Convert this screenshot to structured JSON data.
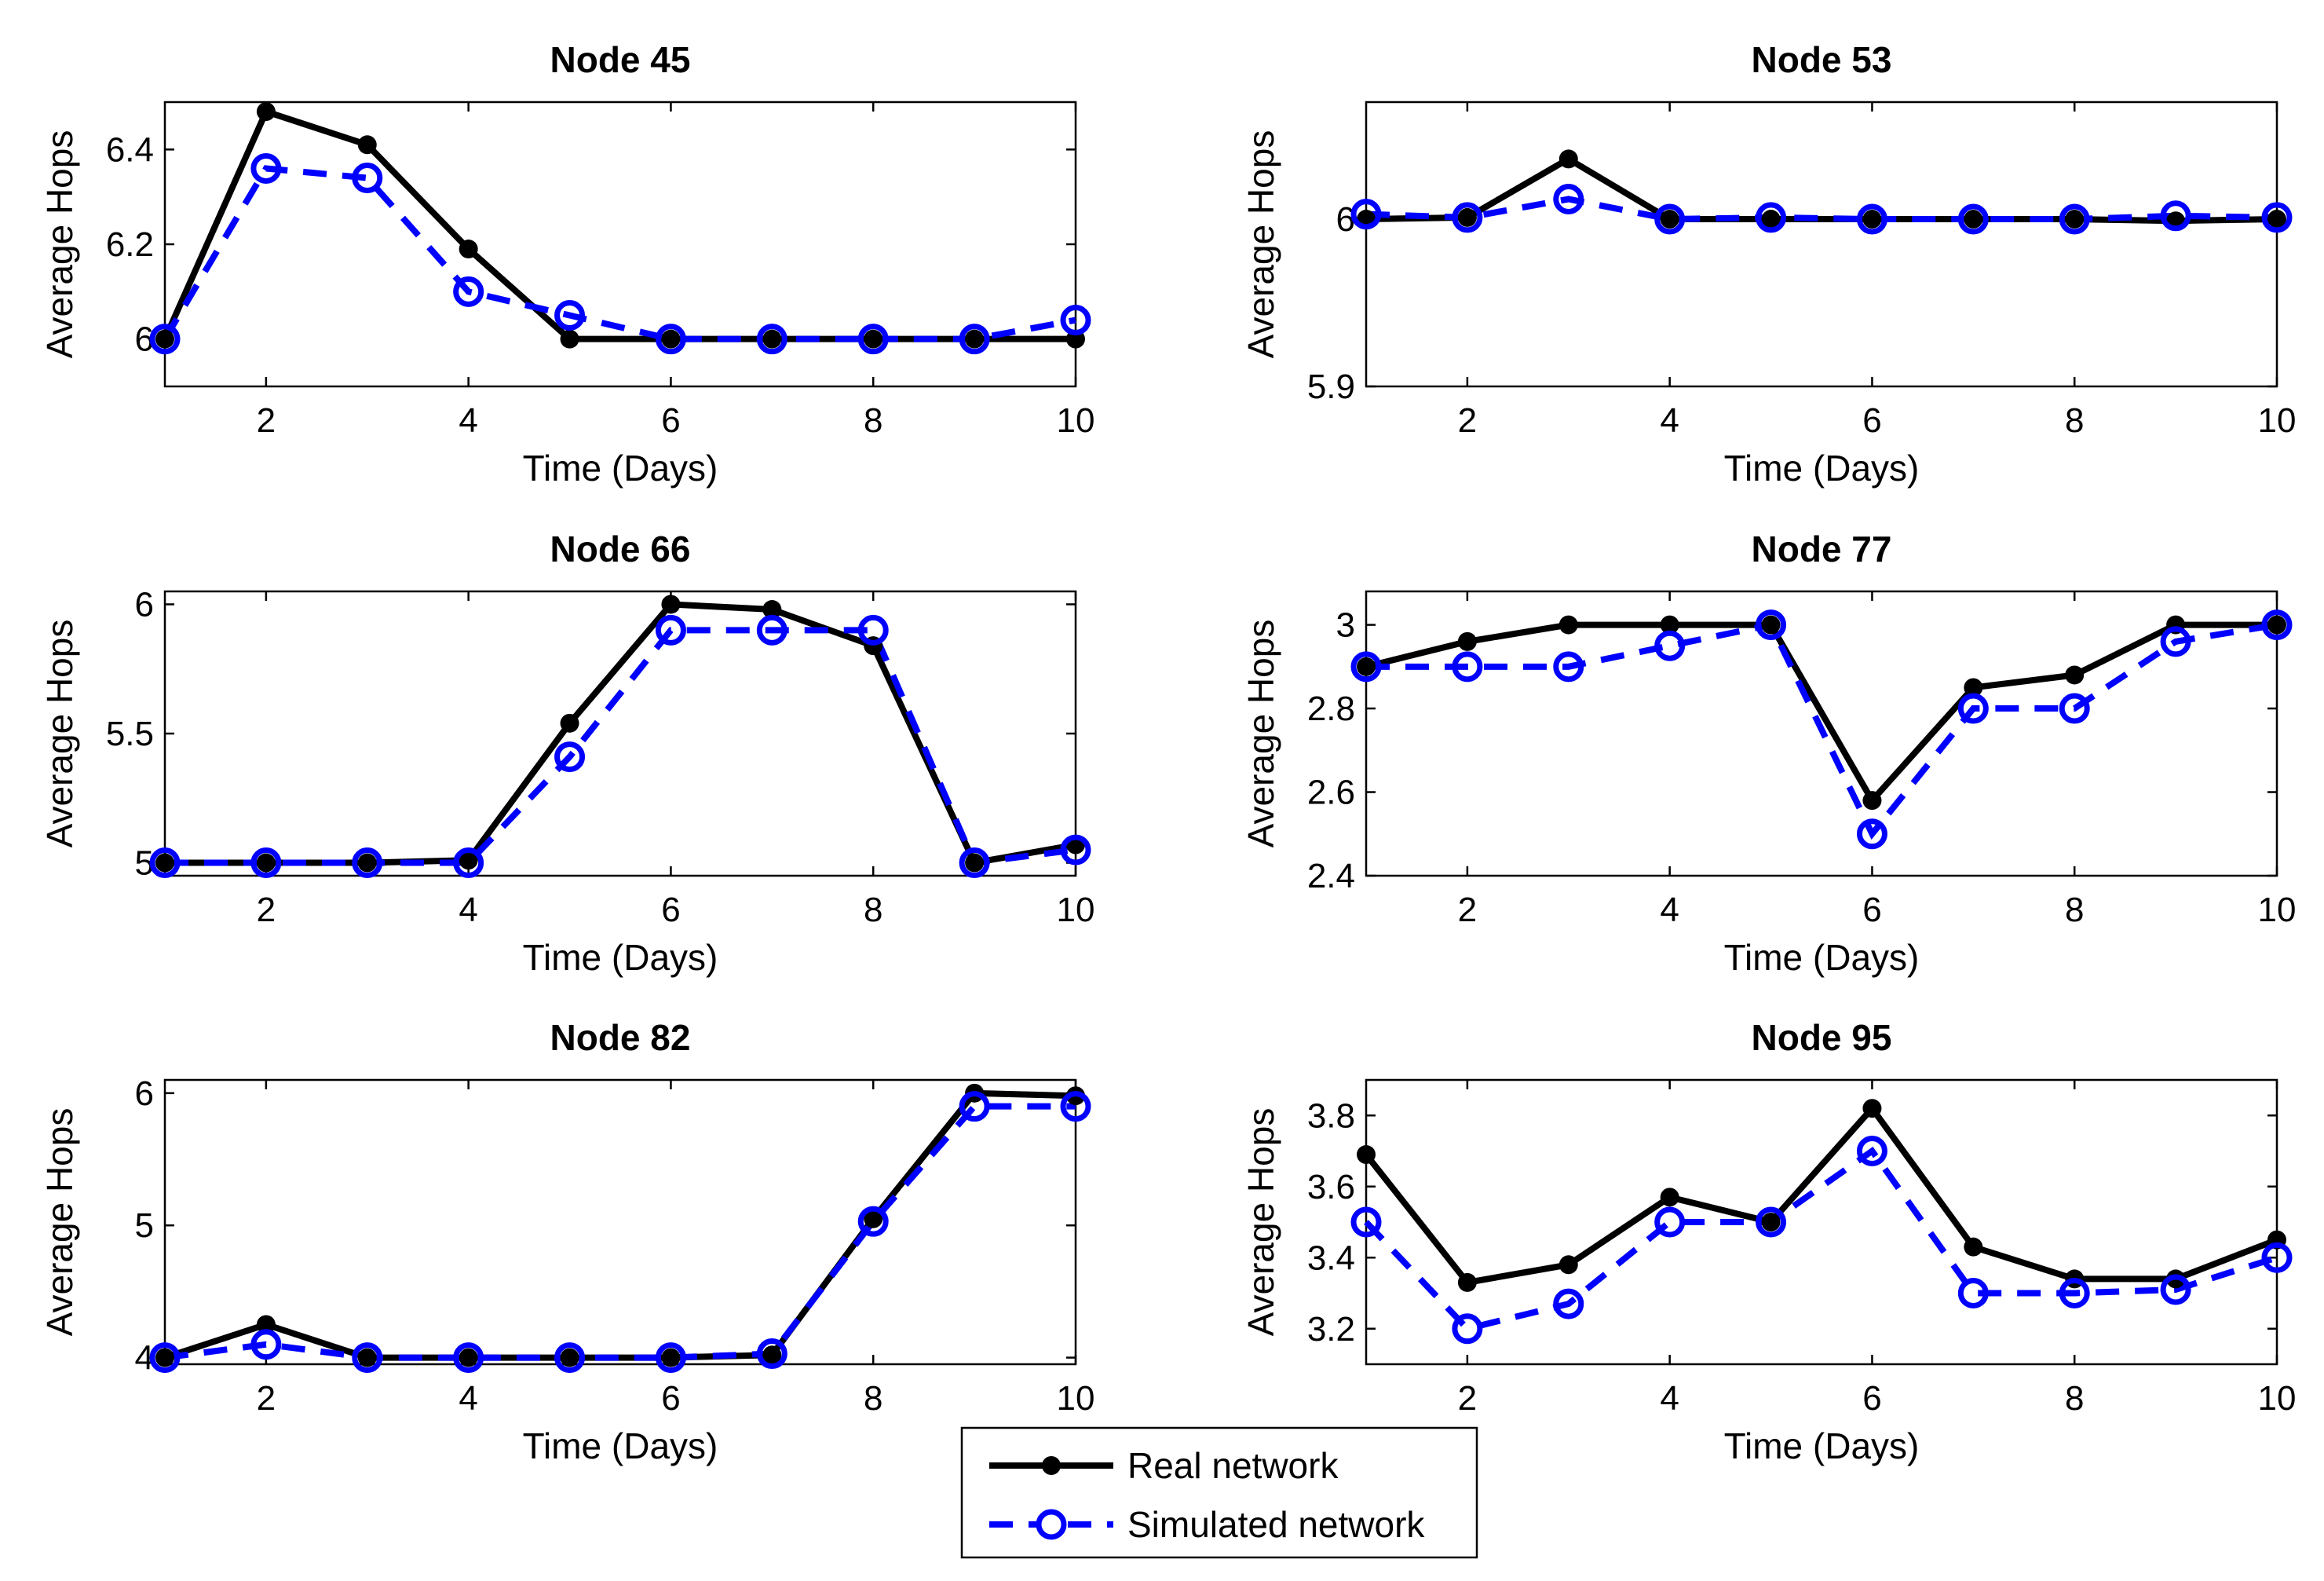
{
  "legend": {
    "real_label": "Real network",
    "simulated_label": "Simulated network"
  },
  "colors": {
    "real": "#000000",
    "simulated": "#0000ff"
  },
  "chart_data": [
    {
      "type": "line",
      "title": "Node 45",
      "xlabel": "Time (Days)",
      "ylabel": "Average Hops",
      "x": [
        1,
        2,
        3,
        4,
        5,
        6,
        7,
        8,
        9,
        10
      ],
      "xlim": [
        1,
        10
      ],
      "ylim": [
        5.9,
        6.5
      ],
      "xticks": [
        2,
        4,
        6,
        8,
        10
      ],
      "xtick_labels": [
        "2",
        "4",
        "6",
        "8",
        "10"
      ],
      "yticks": [
        6.0,
        6.2,
        6.4
      ],
      "ytick_labels": [
        "6",
        "6.2",
        "6.4"
      ],
      "series": [
        {
          "name": "Real network",
          "values": [
            6.0,
            6.48,
            6.41,
            6.19,
            6.0,
            6.0,
            6.0,
            6.0,
            6.0,
            6.0
          ]
        },
        {
          "name": "Simulated network",
          "values": [
            6.0,
            6.36,
            6.34,
            6.1,
            6.05,
            6.0,
            6.0,
            6.0,
            6.0,
            6.04
          ]
        }
      ]
    },
    {
      "type": "line",
      "title": "Node 53",
      "xlabel": "Time (Days)",
      "ylabel": "Average Hops",
      "x": [
        1,
        2,
        3,
        4,
        5,
        6,
        7,
        8,
        9,
        10
      ],
      "xlim": [
        1,
        10
      ],
      "ylim": [
        5.9,
        6.07
      ],
      "xticks": [
        2,
        4,
        6,
        8,
        10
      ],
      "xtick_labels": [
        "2",
        "4",
        "6",
        "8",
        "10"
      ],
      "yticks": [
        5.9,
        6.0
      ],
      "ytick_labels": [
        "5.9",
        "6"
      ],
      "series": [
        {
          "name": "Real network",
          "values": [
            6.0,
            6.001,
            6.036,
            6.0,
            6.0,
            6.0,
            6.0,
            6.0,
            5.999,
            6.0
          ]
        },
        {
          "name": "Simulated network",
          "values": [
            6.003,
            6.001,
            6.012,
            6.0,
            6.001,
            6.0,
            6.0,
            6.0,
            6.002,
            6.001
          ]
        }
      ]
    },
    {
      "type": "line",
      "title": "Node 66",
      "xlabel": "Time (Days)",
      "ylabel": "Average Hops",
      "x": [
        1,
        2,
        3,
        4,
        5,
        6,
        7,
        8,
        9,
        10
      ],
      "xlim": [
        1,
        10
      ],
      "ylim": [
        4.95,
        6.05
      ],
      "xticks": [
        2,
        4,
        6,
        8,
        10
      ],
      "xtick_labels": [
        "2",
        "4",
        "6",
        "8",
        "10"
      ],
      "yticks": [
        5.0,
        5.5,
        6.0
      ],
      "ytick_labels": [
        "5",
        "5.5",
        "6"
      ],
      "series": [
        {
          "name": "Real network",
          "values": [
            5.0,
            5.0,
            5.0,
            5.01,
            5.54,
            6.0,
            5.98,
            5.84,
            5.0,
            5.07
          ]
        },
        {
          "name": "Simulated network",
          "values": [
            5.0,
            5.0,
            5.0,
            5.0,
            5.41,
            5.9,
            5.9,
            5.9,
            5.0,
            5.05
          ]
        }
      ]
    },
    {
      "type": "line",
      "title": "Node 77",
      "xlabel": "Time (Days)",
      "ylabel": "Average Hops",
      "x": [
        1,
        2,
        3,
        4,
        5,
        6,
        7,
        8,
        9,
        10
      ],
      "xlim": [
        1,
        10
      ],
      "ylim": [
        2.4,
        3.08
      ],
      "xticks": [
        2,
        4,
        6,
        8,
        10
      ],
      "xtick_labels": [
        "2",
        "4",
        "6",
        "8",
        "10"
      ],
      "yticks": [
        2.4,
        2.6,
        2.8,
        3.0
      ],
      "ytick_labels": [
        "2.4",
        "2.6",
        "2.8",
        "3"
      ],
      "series": [
        {
          "name": "Real network",
          "values": [
            2.9,
            2.96,
            3.0,
            3.0,
            3.0,
            2.58,
            2.85,
            2.88,
            3.0,
            3.0
          ]
        },
        {
          "name": "Simulated network",
          "values": [
            2.9,
            2.9,
            2.9,
            2.95,
            3.0,
            2.5,
            2.8,
            2.8,
            2.96,
            3.0
          ]
        }
      ]
    },
    {
      "type": "line",
      "title": "Node 82",
      "xlabel": "Time (Days)",
      "ylabel": "Average Hops",
      "x": [
        1,
        2,
        3,
        4,
        5,
        6,
        7,
        8,
        9,
        10
      ],
      "xlim": [
        1,
        10
      ],
      "ylim": [
        3.95,
        6.1
      ],
      "xticks": [
        2,
        4,
        6,
        8,
        10
      ],
      "xtick_labels": [
        "2",
        "4",
        "6",
        "8",
        "10"
      ],
      "yticks": [
        4.0,
        5.0,
        6.0
      ],
      "ytick_labels": [
        "4",
        "5",
        "6"
      ],
      "series": [
        {
          "name": "Real network",
          "values": [
            4.0,
            4.25,
            4.0,
            4.0,
            4.0,
            4.0,
            4.02,
            5.05,
            6.0,
            5.98
          ]
        },
        {
          "name": "Simulated network",
          "values": [
            4.0,
            4.1,
            4.0,
            4.0,
            4.0,
            4.0,
            4.03,
            5.03,
            5.9,
            5.9
          ]
        }
      ]
    },
    {
      "type": "line",
      "title": "Node 95",
      "xlabel": "Time (Days)",
      "ylabel": "Average Hops",
      "x": [
        1,
        2,
        3,
        4,
        5,
        6,
        7,
        8,
        9,
        10
      ],
      "xlim": [
        1,
        10
      ],
      "ylim": [
        3.1,
        3.9
      ],
      "xticks": [
        2,
        4,
        6,
        8,
        10
      ],
      "xtick_labels": [
        "2",
        "4",
        "6",
        "8",
        "10"
      ],
      "yticks": [
        3.2,
        3.4,
        3.6,
        3.8
      ],
      "ytick_labels": [
        "3.2",
        "3.4",
        "3.6",
        "3.8"
      ],
      "series": [
        {
          "name": "Real network",
          "values": [
            3.69,
            3.33,
            3.38,
            3.57,
            3.5,
            3.82,
            3.43,
            3.34,
            3.34,
            3.45
          ]
        },
        {
          "name": "Simulated network",
          "values": [
            3.5,
            3.2,
            3.27,
            3.5,
            3.5,
            3.7,
            3.3,
            3.3,
            3.31,
            3.4
          ]
        }
      ]
    }
  ]
}
